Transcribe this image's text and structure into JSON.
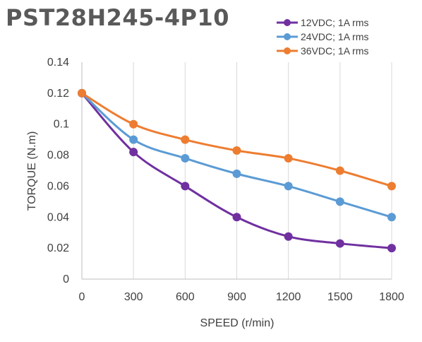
{
  "chart_data": {
    "type": "line",
    "title": "PST28H245-4P10",
    "xlabel": "SPEED (r/min)",
    "ylabel": "TORQUE (N.m)",
    "x": [
      0,
      300,
      600,
      900,
      1200,
      1500,
      1800
    ],
    "xlim": [
      0,
      1800
    ],
    "ylim": [
      0,
      0.14
    ],
    "yticks": [
      0,
      0.02,
      0.04,
      0.06,
      0.08,
      0.1,
      0.12,
      0.14
    ],
    "ytick_labels": [
      "0",
      "0.02",
      "0.04",
      "0.06",
      "0.08",
      "0.1",
      "0.12",
      "0.14"
    ],
    "xtick_labels": [
      "0",
      "300",
      "600",
      "900",
      "1200",
      "1500",
      "1800"
    ],
    "grid": "vertical",
    "legend": "top-right",
    "series": [
      {
        "name": "12VDC; 1A rms",
        "color": "#7030A0",
        "values": [
          0.12,
          0.082,
          0.06,
          0.04,
          0.0275,
          0.023,
          0.02
        ]
      },
      {
        "name": "24VDC; 1A rms",
        "color": "#5B9BD5",
        "values": [
          0.12,
          0.09,
          0.078,
          0.068,
          0.06,
          0.05,
          0.04
        ]
      },
      {
        "name": "36VDC; 1A rms",
        "color": "#ED7D31",
        "values": [
          0.12,
          0.1,
          0.09,
          0.083,
          0.078,
          0.07,
          0.06
        ]
      }
    ]
  }
}
